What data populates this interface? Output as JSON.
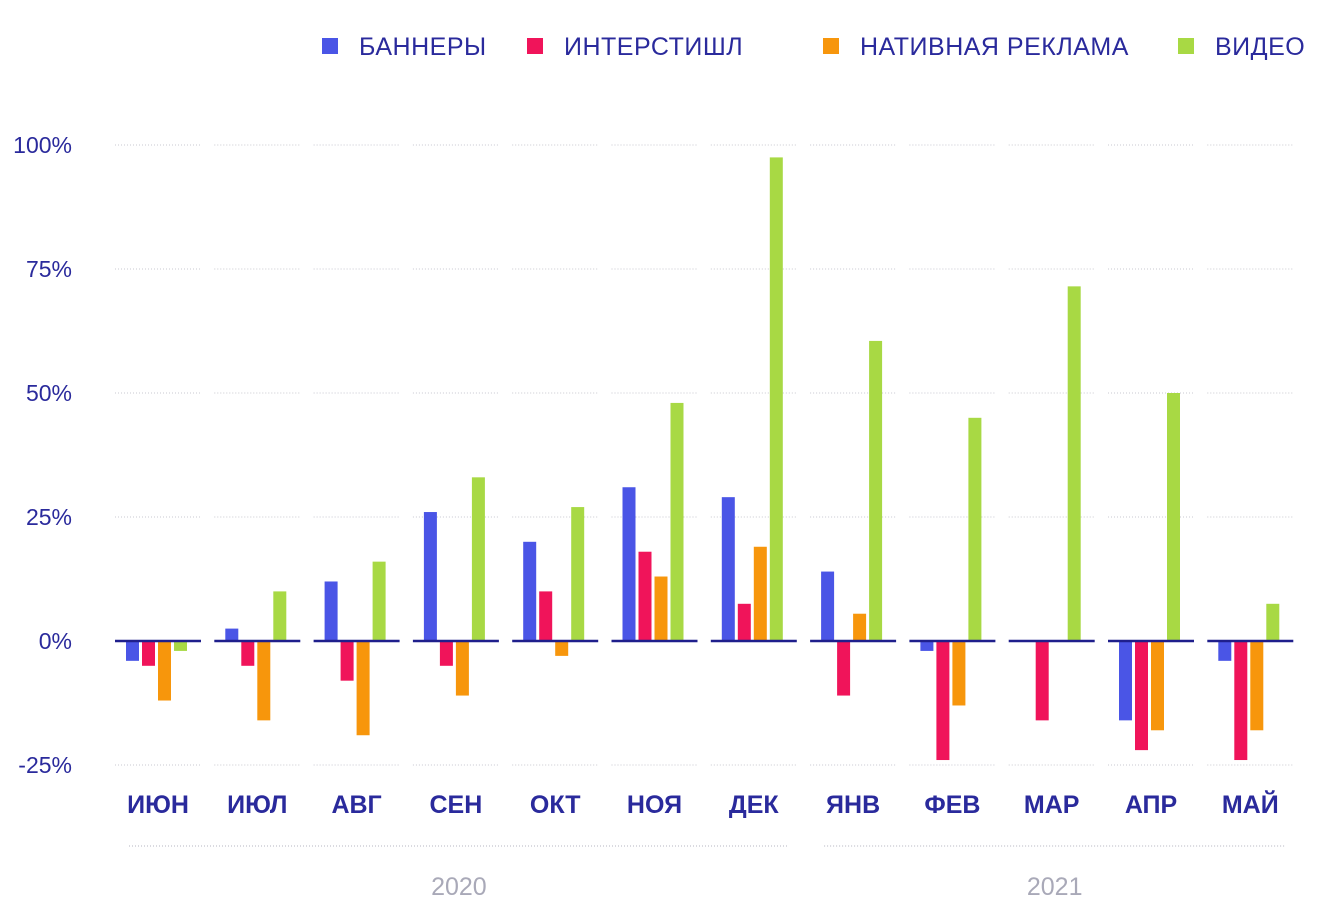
{
  "chart_data": {
    "type": "bar",
    "title": "",
    "xlabel": "",
    "ylabel": "",
    "ylim": [
      -25,
      100
    ],
    "yticks": [
      100,
      75,
      50,
      25,
      0,
      -25
    ],
    "ytick_labels": [
      "100%",
      "75%",
      "50%",
      "25%",
      "0%",
      "-25%"
    ],
    "grid": true,
    "legend_position": "top",
    "categories": [
      "ИЮН",
      "ИЮЛ",
      "АВГ",
      "СЕН",
      "ОКТ",
      "НОЯ",
      "ДЕК",
      "ЯНВ",
      "ФЕВ",
      "МАР",
      "АПР",
      "МАЙ"
    ],
    "year_groups": [
      {
        "label": "2020",
        "from": 0,
        "to": 6
      },
      {
        "label": "2021",
        "from": 7,
        "to": 11
      }
    ],
    "series": [
      {
        "name": "БАННЕРЫ",
        "color": "#4a55e6",
        "values": [
          -4,
          2.5,
          12,
          26,
          20,
          31,
          29,
          14,
          -2,
          0,
          -16,
          -4
        ]
      },
      {
        "name": "ИНТЕРСТИШЛ",
        "color": "#f0145a",
        "values": [
          -5,
          -5,
          -8,
          -5,
          10,
          18,
          7.5,
          -11,
          -24,
          -16,
          -22,
          -24
        ]
      },
      {
        "name": "НАТИВНАЯ РЕКЛАМА",
        "color": "#f7960c",
        "values": [
          -12,
          -16,
          -19,
          -11,
          -3,
          13,
          19,
          5.5,
          -13,
          0,
          -18,
          -18
        ]
      },
      {
        "name": "ВИДЕО",
        "color": "#a8d944",
        "values": [
          -2,
          10,
          16,
          33,
          27,
          48,
          97.5,
          60.5,
          45,
          71.5,
          50,
          7.5
        ]
      }
    ]
  }
}
